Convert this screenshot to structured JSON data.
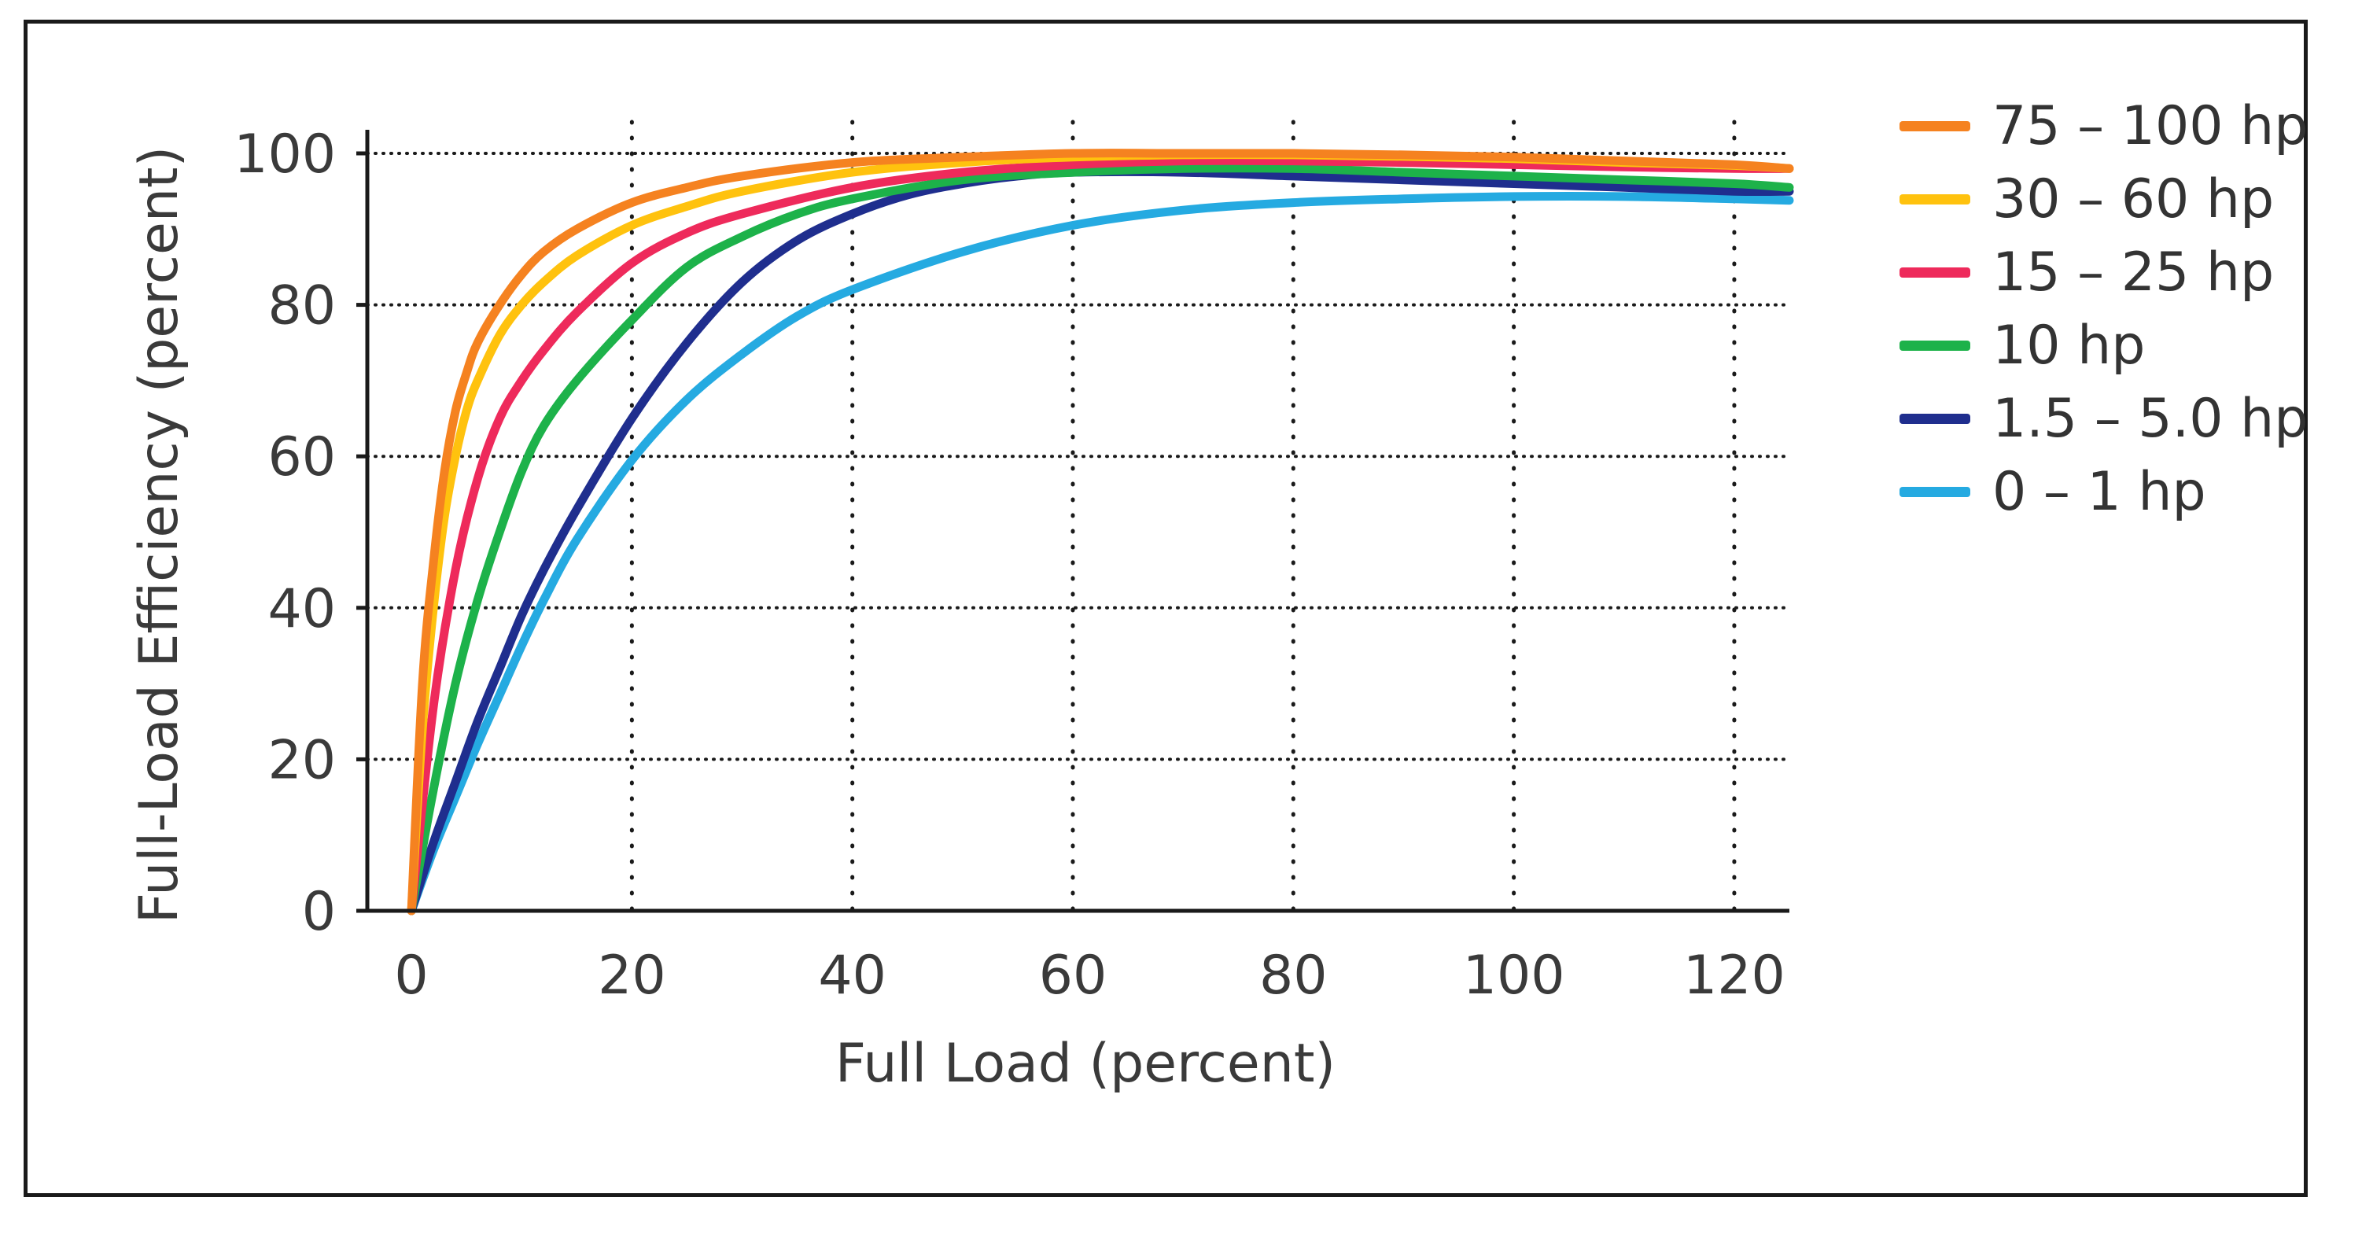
{
  "chart_data": {
    "type": "line",
    "xlabel": "Full Load (percent)",
    "ylabel": "Full-Load Efficiency (percent)",
    "xlim": [
      -4,
      125
    ],
    "ylim": [
      0,
      100
    ],
    "x_ticks": [
      0,
      20,
      40,
      60,
      80,
      100,
      120
    ],
    "y_ticks": [
      0,
      20,
      40,
      60,
      80,
      100
    ],
    "grid": "dotted",
    "legend_position": "right",
    "series": [
      {
        "name": "75 – 100 hp",
        "color": "#F58220",
        "x": [
          0,
          1,
          2,
          3,
          4,
          5,
          6,
          8,
          10,
          12,
          15,
          20,
          25,
          30,
          40,
          50,
          60,
          70,
          80,
          90,
          100,
          110,
          120,
          125
        ],
        "y": [
          0,
          30,
          46,
          58,
          66,
          71,
          75,
          80,
          84,
          87,
          90,
          93.5,
          95.5,
          97,
          98.8,
          99.5,
          100,
          100,
          100,
          99.8,
          99.5,
          99,
          98.5,
          98
        ]
      },
      {
        "name": "30 – 60 hp",
        "color": "#FFC20E",
        "x": [
          0,
          1,
          2,
          3,
          4,
          5,
          6,
          8,
          10,
          12,
          15,
          20,
          25,
          30,
          40,
          50,
          60,
          70,
          80,
          90,
          100,
          110,
          120,
          125
        ],
        "y": [
          0,
          24,
          40,
          52,
          60,
          66,
          70,
          76,
          80,
          83,
          86.5,
          90.5,
          93,
          95,
          97.5,
          98.8,
          99.5,
          99.8,
          99.8,
          99.6,
          99.3,
          98.8,
          98.4,
          98
        ]
      },
      {
        "name": "15 – 25 hp",
        "color": "#EE2A5B",
        "x": [
          0,
          2,
          4,
          6,
          8,
          10,
          12,
          15,
          20,
          25,
          30,
          40,
          50,
          60,
          70,
          80,
          90,
          100,
          110,
          120,
          125
        ],
        "y": [
          0,
          27,
          45,
          57,
          65,
          70,
          74,
          79,
          85.5,
          89.5,
          92,
          95.5,
          97.5,
          98.5,
          99,
          99,
          98.8,
          98.5,
          98.2,
          98,
          98
        ]
      },
      {
        "name": "10 hp",
        "color": "#1DB24A",
        "x": [
          0,
          2,
          4,
          6,
          8,
          10,
          12,
          15,
          20,
          25,
          30,
          35,
          40,
          50,
          60,
          70,
          80,
          90,
          100,
          110,
          120,
          125
        ],
        "y": [
          0,
          16,
          30,
          41,
          50,
          58,
          64,
          70,
          78,
          85,
          89,
          92,
          94,
          96.5,
          97.5,
          98,
          98,
          97.5,
          97,
          96.5,
          96,
          95.5
        ]
      },
      {
        "name": "1.5 – 5.0 hp",
        "color": "#1F2E8E",
        "x": [
          0,
          2,
          4,
          6,
          8,
          10,
          12,
          15,
          20,
          25,
          30,
          35,
          40,
          45,
          50,
          55,
          60,
          70,
          80,
          90,
          100,
          110,
          120,
          125
        ],
        "y": [
          0,
          9,
          17,
          25,
          32,
          39,
          45,
          53,
          65,
          75,
          83,
          88.5,
          92,
          94.5,
          96,
          97,
          97.5,
          97.5,
          97,
          96.5,
          96,
          95.5,
          95,
          95
        ]
      },
      {
        "name": "0 – 1 hp",
        "color": "#25AAE1",
        "x": [
          0,
          2,
          4,
          6,
          8,
          10,
          12,
          15,
          20,
          25,
          30,
          35,
          40,
          50,
          60,
          70,
          80,
          90,
          100,
          110,
          120,
          125
        ],
        "y": [
          0,
          8,
          15,
          22,
          28.5,
          35,
          41,
          49,
          59.5,
          67.5,
          73.5,
          78.5,
          82,
          87,
          90.5,
          92.5,
          93.5,
          94,
          94.3,
          94.3,
          94,
          93.8
        ]
      }
    ]
  }
}
